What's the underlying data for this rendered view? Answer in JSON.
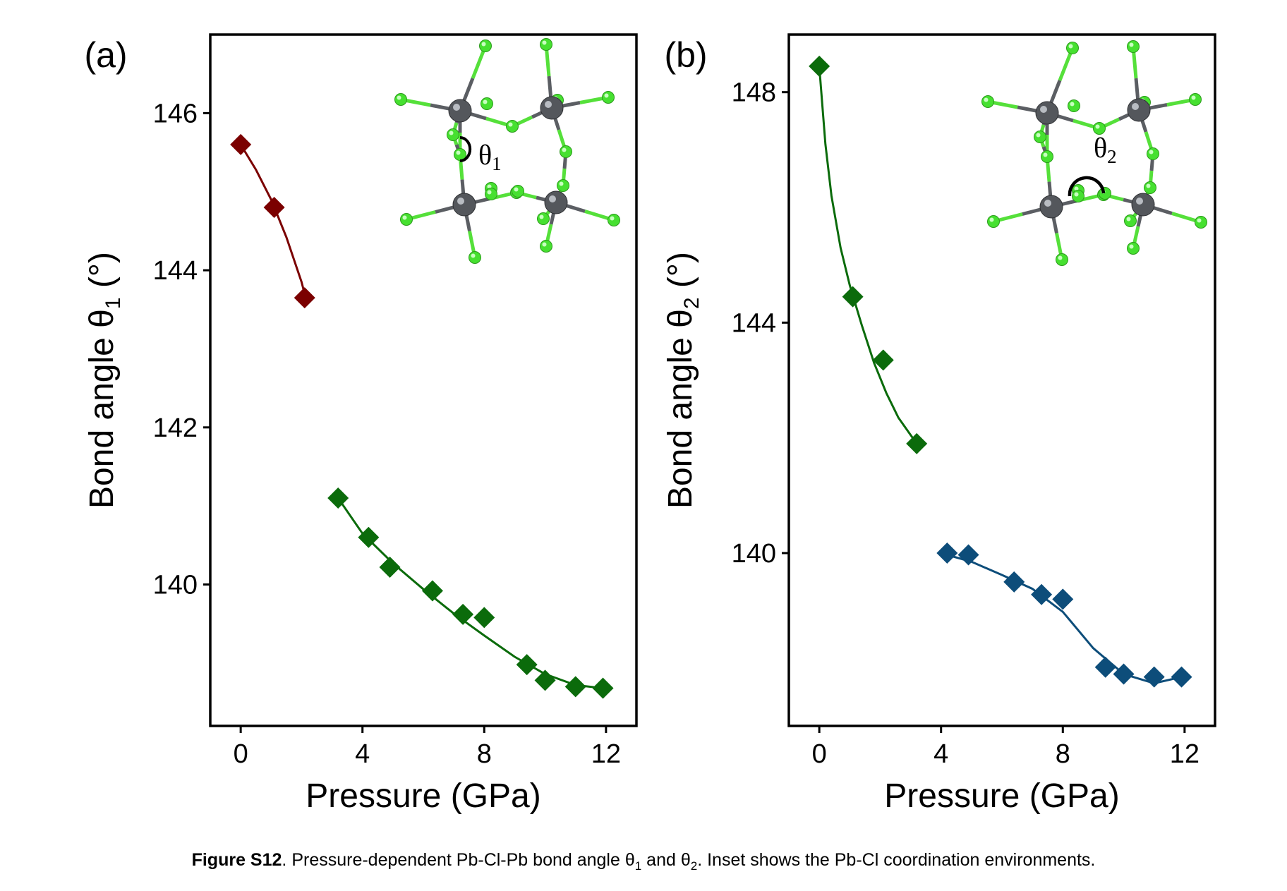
{
  "chart_data": [
    {
      "type": "scatter",
      "panel_label": "(a)",
      "xlabel": "Pressure (GPa)",
      "ylabel_prefix": "Bond angle θ",
      "ylabel_sub": "1",
      "ylabel_suffix": " (°)",
      "xlim": [
        -1,
        13
      ],
      "ylim": [
        138.2,
        147.0
      ],
      "xticks": [
        0,
        4,
        8,
        12
      ],
      "yticks": [
        140,
        142,
        144,
        146
      ],
      "inset_symbol": "θ",
      "inset_sub": "1",
      "series": [
        {
          "color": "#7b0000",
          "x": [
            0.0,
            1.1,
            2.1
          ],
          "y": [
            145.6,
            144.8,
            143.65
          ],
          "fit": [
            [
              0.0,
              145.6
            ],
            [
              0.5,
              145.28
            ],
            [
              1.0,
              144.9
            ],
            [
              1.5,
              144.42
            ],
            [
              2.0,
              143.85
            ],
            [
              2.1,
              143.7
            ]
          ]
        },
        {
          "color": "#0b6b0b",
          "x": [
            3.2,
            4.2,
            4.9,
            6.3,
            7.3,
            8.0,
            9.4,
            10.0,
            11.0,
            11.9
          ],
          "y": [
            141.1,
            140.6,
            140.22,
            139.92,
            139.62,
            139.58,
            138.98,
            138.78,
            138.7,
            138.68
          ],
          "fit": [
            [
              3.2,
              141.1
            ],
            [
              4.0,
              140.65
            ],
            [
              5.0,
              140.27
            ],
            [
              6.0,
              139.94
            ],
            [
              7.0,
              139.63
            ],
            [
              8.0,
              139.35
            ],
            [
              9.0,
              139.08
            ],
            [
              10.0,
              138.86
            ],
            [
              11.0,
              138.72
            ],
            [
              11.9,
              138.68
            ]
          ]
        }
      ]
    },
    {
      "type": "scatter",
      "panel_label": "(b)",
      "xlabel": "Pressure (GPa)",
      "ylabel_prefix": "Bond angle θ",
      "ylabel_sub": "2",
      "ylabel_suffix": " (°)",
      "xlim": [
        -1,
        13
      ],
      "ylim": [
        137.0,
        149.0
      ],
      "xticks": [
        0,
        4,
        8,
        12
      ],
      "yticks": [
        140,
        144,
        148
      ],
      "inset_symbol": "θ",
      "inset_sub": "2",
      "series": [
        {
          "color": "#0b6b0b",
          "x": [
            0.0,
            1.1,
            2.1,
            3.2
          ],
          "y": [
            148.45,
            144.45,
            143.35,
            141.9
          ],
          "fit": [
            [
              0.0,
              148.45
            ],
            [
              0.2,
              147.1
            ],
            [
              0.4,
              146.2
            ],
            [
              0.7,
              145.3
            ],
            [
              1.0,
              144.65
            ],
            [
              1.4,
              143.95
            ],
            [
              1.8,
              143.3
            ],
            [
              2.2,
              142.78
            ],
            [
              2.6,
              142.35
            ],
            [
              3.0,
              142.05
            ],
            [
              3.2,
              141.9
            ]
          ]
        },
        {
          "color": "#0d4d7a",
          "x": [
            4.2,
            4.9,
            6.4,
            7.3,
            8.0,
            9.4,
            10.0,
            11.0,
            11.9
          ],
          "y": [
            140.0,
            139.97,
            139.5,
            139.28,
            139.2,
            138.02,
            137.9,
            137.85,
            137.85
          ],
          "fit": [
            [
              4.2,
              139.97
            ],
            [
              5.0,
              139.85
            ],
            [
              6.0,
              139.62
            ],
            [
              7.0,
              139.38
            ],
            [
              8.0,
              138.98
            ],
            [
              9.0,
              138.35
            ],
            [
              10.0,
              137.9
            ],
            [
              11.0,
              137.74
            ],
            [
              11.9,
              137.85
            ]
          ]
        }
      ]
    }
  ],
  "caption": {
    "label": "Figure S12",
    "text_a": ". Pressure-dependent Pb-Cl-Pb bond angle θ",
    "sub_a": "1",
    "text_b": " and θ",
    "sub_b": "2",
    "text_c": ". Inset shows the Pb-Cl coordination environments."
  },
  "colors": {
    "pb_atom": "#54575c",
    "cl_atom": "#46e030",
    "bond_cl": "#55e03a",
    "bond_pb": "#5b5e63"
  }
}
